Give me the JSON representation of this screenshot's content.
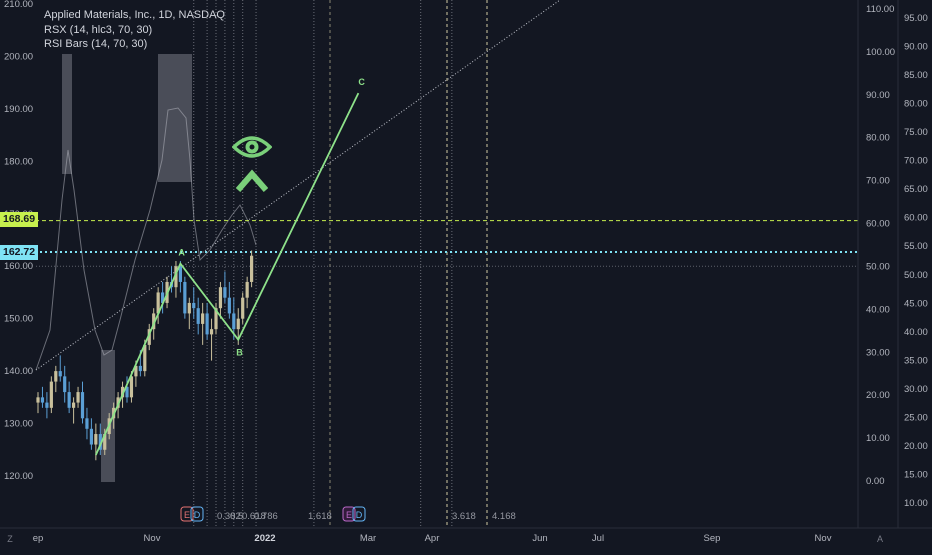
{
  "legend": {
    "symbol": "Applied Materials, Inc., 1D, NASDAQ",
    "ind1": "RSX (14, hlc3, 70, 30)",
    "ind2": "RSI Bars (14, 70, 30)"
  },
  "price_tags": {
    "green": "168.69",
    "cyan": "162.72"
  },
  "colors": {
    "bg": "#131722",
    "up": "#c9c09c",
    "down": "#5b9fd5",
    "wave": "#8ee28a",
    "cyan": "#7fe3f5",
    "green": "#c7f04e",
    "grid": "#2a2e39",
    "axis_text": "#b2b5be"
  },
  "corner_buttons": {
    "left": "Z",
    "right": "A"
  },
  "events": {
    "e_label": "E",
    "d_label": "D"
  },
  "chart_data": {
    "type": "candlestick",
    "title": "Applied Materials, Inc., 1D, NASDAQ",
    "price_axis": {
      "ticks": [
        "210.00",
        "200.00",
        "190.00",
        "180.00",
        "170.00",
        "160.00",
        "150.00",
        "140.00",
        "130.00",
        "120.00"
      ],
      "ylim": [
        115,
        212
      ]
    },
    "osc_axis1": {
      "ticks": [
        "110.00",
        "100.00",
        "90.00",
        "80.00",
        "70.00",
        "60.00",
        "50.00",
        "40.00",
        "30.00",
        "20.00",
        "10.00",
        "0.00"
      ]
    },
    "osc_axis2": {
      "ticks": [
        "95.00",
        "90.00",
        "85.00",
        "80.00",
        "75.00",
        "70.00",
        "65.00",
        "60.00",
        "55.00",
        "50.00",
        "45.00",
        "40.00",
        "35.00",
        "30.00",
        "25.00",
        "20.00",
        "15.00",
        "10.00"
      ]
    },
    "time_axis": [
      "ep",
      "Nov",
      "2022",
      "Mar",
      "Apr",
      "Jun",
      "Jul",
      "Sep",
      "Nov"
    ],
    "levels": [
      {
        "name": "green-dashed",
        "value": 168.69
      },
      {
        "name": "cyan-dotted",
        "value": 162.72
      }
    ],
    "wave_points": [
      {
        "label": "",
        "date_index": 13,
        "price": 124
      },
      {
        "label": "A",
        "date_index": 32,
        "price": 160.5
      },
      {
        "label": "B",
        "date_index": 45,
        "price": 146
      },
      {
        "label": "C",
        "date_index": 72,
        "price": 193
      }
    ],
    "fib_labels": [
      "0.382",
      "0.5",
      "0.618",
      "0.786",
      "1.618",
      "3.618",
      "4.168"
    ],
    "fib_lines_date_index": [
      35,
      38,
      40,
      42,
      44,
      46,
      49,
      62,
      86,
      93
    ],
    "candles": [
      [
        134,
        136,
        132,
        135
      ],
      [
        135,
        137,
        133,
        134
      ],
      [
        134,
        136,
        131,
        133
      ],
      [
        133,
        139,
        132,
        138
      ],
      [
        138,
        141,
        136,
        140
      ],
      [
        140,
        143,
        138,
        139
      ],
      [
        139,
        141,
        134,
        136
      ],
      [
        136,
        138,
        132,
        133
      ],
      [
        133,
        135,
        130,
        134
      ],
      [
        134,
        137,
        133,
        136
      ],
      [
        136,
        138,
        130,
        131
      ],
      [
        131,
        133,
        127,
        129
      ],
      [
        129,
        131,
        125,
        126
      ],
      [
        126,
        130,
        123,
        128
      ],
      [
        128,
        130,
        124,
        125
      ],
      [
        125,
        129,
        124,
        128
      ],
      [
        128,
        132,
        127,
        131
      ],
      [
        131,
        134,
        129,
        133
      ],
      [
        133,
        136,
        131,
        135
      ],
      [
        135,
        138,
        133,
        137
      ],
      [
        137,
        139,
        134,
        135
      ],
      [
        135,
        140,
        134,
        139
      ],
      [
        139,
        142,
        137,
        141
      ],
      [
        141,
        144,
        139,
        140
      ],
      [
        140,
        146,
        139,
        145
      ],
      [
        145,
        149,
        144,
        148
      ],
      [
        148,
        152,
        146,
        151
      ],
      [
        151,
        156,
        149,
        155
      ],
      [
        155,
        157,
        151,
        153
      ],
      [
        153,
        158,
        152,
        157
      ],
      [
        157,
        160,
        155,
        156
      ],
      [
        156,
        161,
        154,
        160
      ],
      [
        160,
        161,
        155,
        157
      ],
      [
        157,
        158,
        150,
        151
      ],
      [
        151,
        154,
        148,
        153
      ],
      [
        153,
        156,
        150,
        152
      ],
      [
        152,
        154,
        147,
        149
      ],
      [
        149,
        153,
        145,
        151
      ],
      [
        151,
        153,
        146,
        147
      ],
      [
        147,
        150,
        142,
        148
      ],
      [
        148,
        153,
        147,
        152
      ],
      [
        152,
        157,
        150,
        156
      ],
      [
        156,
        159,
        153,
        154
      ],
      [
        154,
        157,
        150,
        151
      ],
      [
        151,
        154,
        146,
        148
      ],
      [
        148,
        152,
        145,
        150
      ],
      [
        150,
        155,
        149,
        154
      ],
      [
        154,
        158,
        152,
        157
      ],
      [
        157,
        163,
        156,
        162
      ]
    ]
  }
}
